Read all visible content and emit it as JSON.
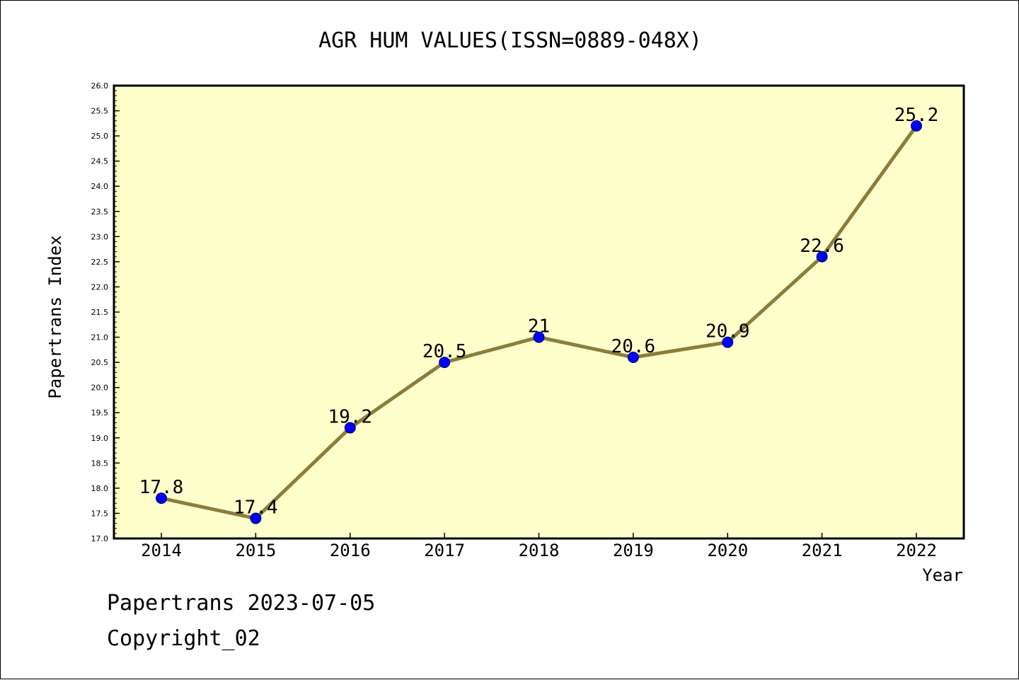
{
  "chart_data": {
    "type": "line",
    "title": "AGR HUM VALUES(ISSN=0889-048X)",
    "xlabel": "Year",
    "ylabel": "Papertrans Index",
    "categories": [
      "2014",
      "2015",
      "2016",
      "2017",
      "2018",
      "2019",
      "2020",
      "2021",
      "2022"
    ],
    "series": [
      {
        "values": [
          17.8,
          17.4,
          19.2,
          20.5,
          21.0,
          20.6,
          20.9,
          22.6,
          25.2
        ],
        "data_labels": [
          "17.8",
          "17.4",
          "19.2",
          "20.5",
          "21",
          "20.6",
          "20.9",
          "22.6",
          "25.2"
        ]
      }
    ],
    "ylim": [
      17.0,
      26.0
    ],
    "y_ticks": [
      "17.0",
      "17.5",
      "18.0",
      "18.5",
      "19.0",
      "19.5",
      "20.0",
      "20.5",
      "21.0",
      "21.5",
      "22.0",
      "22.5",
      "23.0",
      "23.5",
      "24.0",
      "24.5",
      "25.0",
      "25.5",
      "26.0"
    ],
    "grid": false,
    "colors": {
      "plot_background": "#ffffcc",
      "line": "#8b7d3a",
      "marker": "#0000ff",
      "axis": "#000000"
    }
  },
  "footer": {
    "line1": "Papertrans 2023-07-05",
    "line2": "Copyright_02"
  }
}
